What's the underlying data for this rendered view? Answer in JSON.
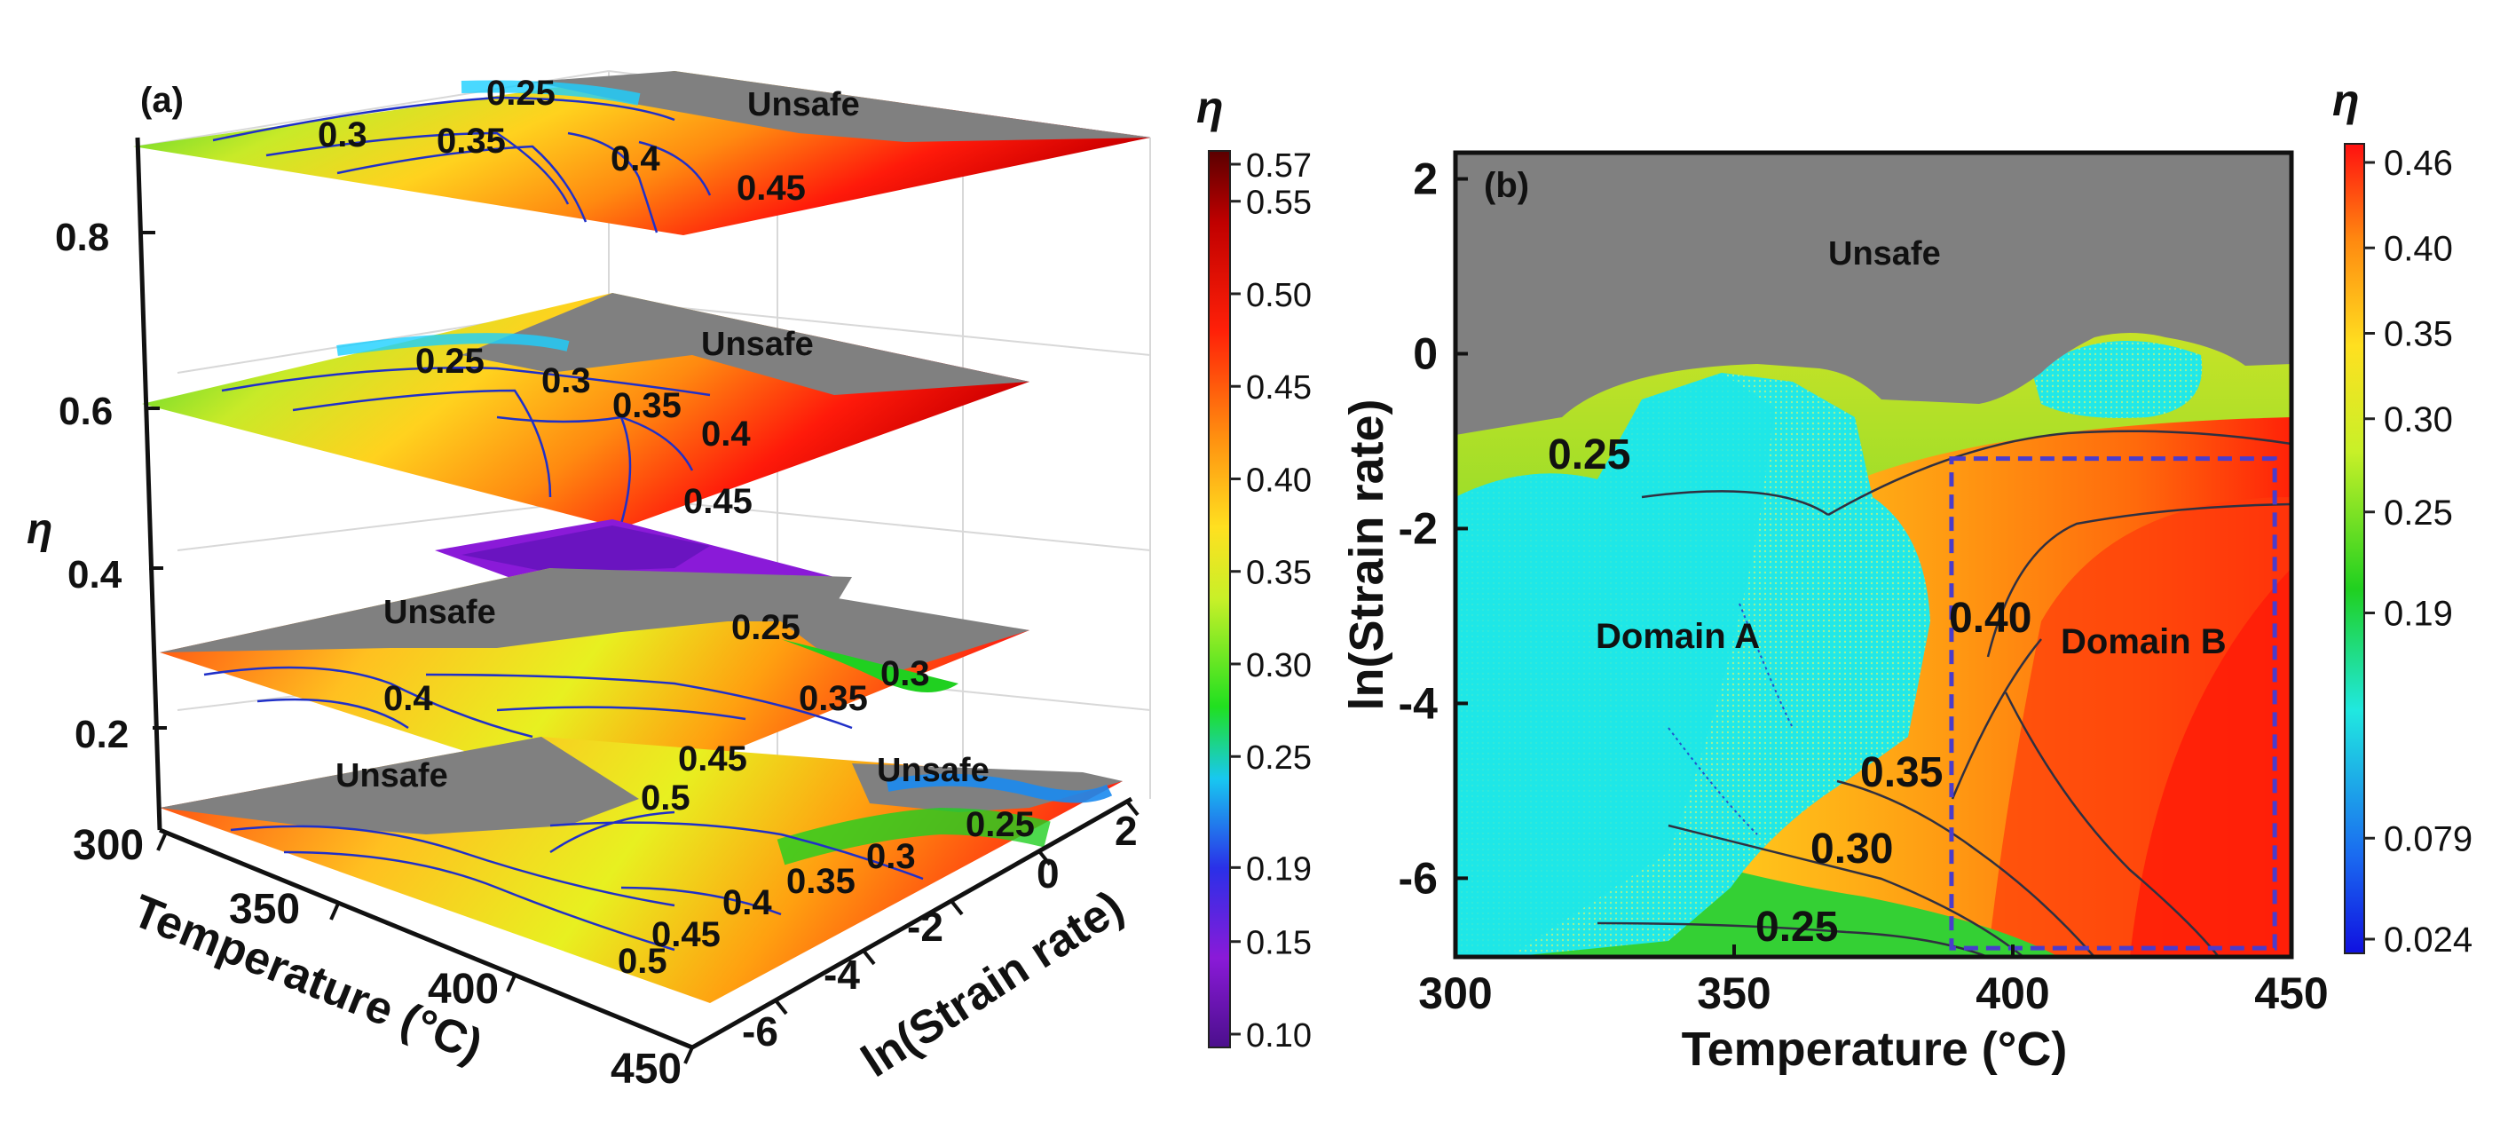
{
  "chart_data": [
    {
      "type": "heatmap",
      "panel": "(a)",
      "title": "",
      "view": "3d-stacked-contour",
      "xlabel": "Temperature (°C)",
      "ylabel": "ln(Strain rate)",
      "zlabel": "η",
      "x_ticks": [
        "300",
        "350",
        "400",
        "450"
      ],
      "y_ticks": [
        "2",
        "0",
        "-2",
        "-4",
        "-6"
      ],
      "z_ticks": [
        "0.2",
        "0.4",
        "0.6",
        "0.8"
      ],
      "layers": [
        {
          "name": "layer-1",
          "labels": [
            "Unsafe",
            "Unsafe",
            "0.25",
            "0.3",
            "0.35",
            "0.4",
            "0.45",
            "0.5",
            "0.45",
            "0.5"
          ]
        },
        {
          "name": "layer-2",
          "labels": [
            "Unsafe",
            "0.25",
            "0.3",
            "0.35",
            "0.4"
          ]
        },
        {
          "name": "layer-3",
          "labels": [
            "Unsafe",
            "0.25",
            "0.3",
            "0.35",
            "0.4",
            "0.45"
          ]
        },
        {
          "name": "layer-4",
          "labels": [
            "0.25",
            "Unsafe",
            "0.3",
            "0.35",
            "0.4",
            "0.45"
          ]
        }
      ],
      "colorbar": {
        "title": "η",
        "range": [
          0.1,
          0.57
        ],
        "ticks": [
          "0.57",
          "0.55",
          "0.50",
          "0.45",
          "0.40",
          "0.35",
          "0.30",
          "0.25",
          "0.19",
          "0.15",
          "0.10"
        ],
        "tick_values": [
          0.57,
          0.55,
          0.5,
          0.45,
          0.4,
          0.35,
          0.3,
          0.25,
          0.19,
          0.15,
          0.1
        ]
      }
    },
    {
      "type": "heatmap",
      "panel": "(b)",
      "title": "",
      "xlabel": "Temperature (°C)",
      "ylabel": "ln(Strain rate)",
      "xlim": [
        300,
        450
      ],
      "ylim": [
        -6.9,
        2.3
      ],
      "x_ticks": [
        300,
        350,
        400,
        450
      ],
      "y_ticks": [
        2,
        0,
        -2,
        -4,
        -6
      ],
      "regions": {
        "unsafe": "Unsafe",
        "domain_a": "Domain A",
        "domain_b": "Domain B"
      },
      "domain_b_box": {
        "x": [
          389,
          447
        ],
        "y": [
          -6.8,
          -1.2
        ]
      },
      "contour_labels": [
        "0.25",
        "0.40",
        "0.35",
        "0.30",
        "0.25"
      ],
      "colorbar": {
        "title": "η",
        "range": [
          0.024,
          0.46
        ],
        "ticks": [
          "0.46",
          "0.40",
          "0.35",
          "0.30",
          "0.25",
          "0.19",
          "0.079",
          "0.024"
        ],
        "tick_values": [
          0.46,
          0.4,
          0.35,
          0.3,
          0.25,
          0.19,
          0.079,
          0.024
        ]
      }
    }
  ],
  "colors": {
    "unsafe": "#808080",
    "safe_cyan": "#1fe6e6",
    "box": "#4a3ccc",
    "contour_blue": "#2030c8",
    "contour_dark": "#303040"
  }
}
